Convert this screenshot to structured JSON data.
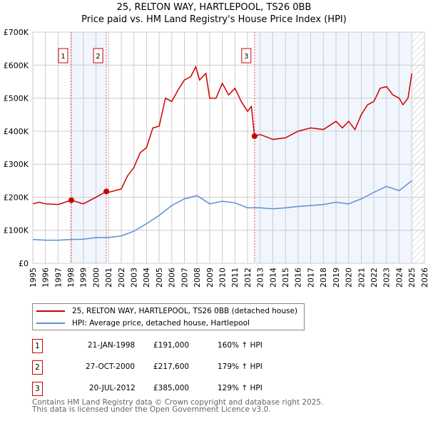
{
  "chart_data": {
    "type": "line",
    "title": "25, RELTON WAY, HARTLEPOOL, TS26 0BB",
    "subtitle": "Price paid vs. HM Land Registry's House Price Index (HPI)",
    "xlim": [
      1995,
      2026
    ],
    "ylim": [
      0,
      700000
    ],
    "x_ticks": [
      "1995",
      "1996",
      "1997",
      "1998",
      "1999",
      "2000",
      "2001",
      "2002",
      "2003",
      "2004",
      "2005",
      "2006",
      "2007",
      "2008",
      "2009",
      "2010",
      "2011",
      "2012",
      "2013",
      "2014",
      "2015",
      "2016",
      "2017",
      "2018",
      "2019",
      "2020",
      "2021",
      "2022",
      "2023",
      "2024",
      "2025",
      "2026"
    ],
    "y_ticks": [
      {
        "v": 0,
        "label": "£0"
      },
      {
        "v": 100000,
        "label": "£100K"
      },
      {
        "v": 200000,
        "label": "£200K"
      },
      {
        "v": 300000,
        "label": "£300K"
      },
      {
        "v": 400000,
        "label": "£400K"
      },
      {
        "v": 500000,
        "label": "£500K"
      },
      {
        "v": 600000,
        "label": "£600K"
      },
      {
        "v": 700000,
        "label": "£700K"
      }
    ],
    "grid": true,
    "legend_placement": "below",
    "series": [
      {
        "name": "25, RELTON WAY, HARTLEPOOL, TS26 0BB (detached house)",
        "color": "#cc0000",
        "x": [
          1995,
          1995.5,
          1996,
          1997,
          1998.05,
          1999,
          2000,
          2000.82,
          2001,
          2002,
          2002.5,
          2003,
          2003.5,
          2004,
          2004.5,
          2005,
          2005.5,
          2006,
          2006.5,
          2007,
          2007.5,
          2007.9,
          2008.2,
          2008.7,
          2009,
          2009.5,
          2010,
          2010.5,
          2011,
          2011.5,
          2012,
          2012.3,
          2012.55,
          2013,
          2014,
          2015,
          2016,
          2017,
          2018,
          2019,
          2019.5,
          2020,
          2020.5,
          2021,
          2021.5,
          2022,
          2022.5,
          2023,
          2023.5,
          2024,
          2024.3,
          2024.7,
          2025
        ],
        "y": [
          180000,
          185000,
          180000,
          178000,
          191000,
          180000,
          200000,
          217600,
          215000,
          225000,
          265000,
          290000,
          335000,
          350000,
          410000,
          415000,
          500000,
          490000,
          525000,
          555000,
          565000,
          595000,
          555000,
          575000,
          500000,
          500000,
          545000,
          510000,
          530000,
          490000,
          460000,
          475000,
          385000,
          390000,
          375000,
          380000,
          400000,
          410000,
          405000,
          430000,
          410000,
          430000,
          405000,
          450000,
          480000,
          490000,
          530000,
          535000,
          510000,
          500000,
          480000,
          500000,
          575000
        ]
      },
      {
        "name": "HPI: Average price, detached house, Hartlepool",
        "color": "#5b8fd4",
        "x": [
          1995,
          1996,
          1997,
          1998,
          1999,
          2000,
          2001,
          2002,
          2003,
          2004,
          2005,
          2006,
          2007,
          2008,
          2009,
          2010,
          2011,
          2012,
          2013,
          2014,
          2015,
          2016,
          2017,
          2018,
          2019,
          2020,
          2021,
          2022,
          2023,
          2024,
          2025
        ],
        "y": [
          72000,
          70000,
          70000,
          72000,
          73000,
          78000,
          78000,
          83000,
          97000,
          120000,
          145000,
          175000,
          195000,
          205000,
          180000,
          188000,
          183000,
          168000,
          168000,
          165000,
          168000,
          172000,
          175000,
          178000,
          185000,
          180000,
          195000,
          215000,
          233000,
          220000,
          250000
        ]
      }
    ],
    "sales": [
      {
        "label": "1",
        "x": 1998.05,
        "y": 191000,
        "date": "21-JAN-1998",
        "price": "£191,000",
        "hpi": "160% ↑ HPI"
      },
      {
        "label": "2",
        "x": 2000.82,
        "y": 217600,
        "date": "27-OCT-2000",
        "price": "£217,600",
        "hpi": "179% ↑ HPI"
      },
      {
        "label": "3",
        "x": 2012.55,
        "y": 385000,
        "date": "20-JUL-2012",
        "price": "£385,000",
        "hpi": "129% ↑ HPI"
      }
    ],
    "shaded_ranges": [
      [
        1998.05,
        2000.82
      ],
      [
        2012.55,
        2025
      ]
    ],
    "forecast_hatch_from": 2025
  },
  "footer": [
    "Contains HM Land Registry data © Crown copyright and database right 2025.",
    "This data is licensed under the Open Government Licence v3.0."
  ]
}
